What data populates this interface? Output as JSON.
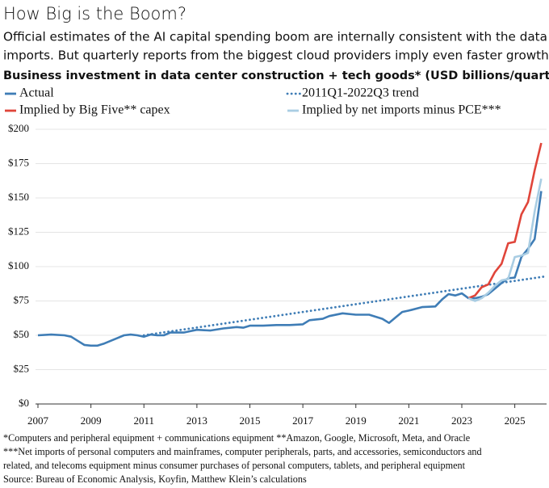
{
  "chart_data": {
    "type": "line",
    "title": "How Big is the Boom?",
    "subtitle": [
      "Official estimates of the AI capital spending boom are internally consistent with the data on",
      "imports. But quarterly reports from the biggest cloud providers imply even faster growth."
    ],
    "chart_title": "Business investment in data center construction + tech goods* (USD billions/quarter)",
    "xlim": [
      2007,
      2026.2
    ],
    "xticks": [
      2007,
      2009,
      2011,
      2013,
      2015,
      2017,
      2019,
      2021,
      2023,
      2025
    ],
    "ylim": [
      0,
      200
    ],
    "yticks": [
      {
        "value": 0,
        "label": "$0"
      },
      {
        "value": 25,
        "label": "$25"
      },
      {
        "value": 50,
        "label": "$50"
      },
      {
        "value": 75,
        "label": "$75"
      },
      {
        "value": 100,
        "label": "$100"
      },
      {
        "value": 125,
        "label": "$125"
      },
      {
        "value": 150,
        "label": "$150"
      },
      {
        "value": 175,
        "label": "$175"
      },
      {
        "value": 200,
        "label": "$200"
      }
    ],
    "grid": true,
    "series": [
      {
        "name": "Actual",
        "color": "#3f7db6",
        "style": "solid",
        "x": [
          2007,
          2007.5,
          2008,
          2008.25,
          2008.5,
          2008.75,
          2009,
          2009.25,
          2009.5,
          2009.75,
          2010,
          2010.25,
          2010.5,
          2010.75,
          2011,
          2011.25,
          2011.5,
          2011.75,
          2012,
          2012.5,
          2012.75,
          2013,
          2013.5,
          2014,
          2014.5,
          2014.75,
          2015,
          2015.5,
          2016,
          2016.5,
          2017,
          2017.25,
          2017.75,
          2018,
          2018.5,
          2019,
          2019.5,
          2020,
          2020.25,
          2020.5,
          2020.75,
          2021,
          2021.5,
          2022,
          2022.25,
          2022.5,
          2022.75,
          2023,
          2023.25,
          2023.5,
          2023.75,
          2024,
          2024.25,
          2024.5,
          2024.75,
          2025,
          2025.25,
          2025.5,
          2025.75,
          2026
        ],
        "values": [
          50,
          50.5,
          50,
          49,
          46,
          43,
          42.5,
          42.5,
          44,
          46,
          48,
          50,
          50.5,
          50,
          49,
          50.5,
          50,
          50,
          52,
          52,
          53,
          54,
          53.5,
          55,
          56,
          55.5,
          57,
          57,
          57.5,
          57.5,
          58,
          61,
          62,
          64,
          66,
          65,
          65,
          62,
          59,
          63,
          67,
          68,
          70.5,
          71,
          76,
          80,
          79,
          80.5,
          77,
          77,
          78,
          80,
          84,
          88,
          91.5,
          92,
          107,
          113,
          120,
          155
        ]
      },
      {
        "name": "2011Q1-2022Q3 trend",
        "color": "#3f7db6",
        "style": "dotted",
        "x": [
          2011,
          2026.2
        ],
        "values": [
          50,
          93
        ]
      },
      {
        "name": "Implied by Big Five** capex",
        "color": "#e0453a",
        "style": "solid",
        "x": [
          2023.25,
          2023.5,
          2023.75,
          2024,
          2024.25,
          2024.5,
          2024.75,
          2025,
          2025.25,
          2025.5,
          2025.75,
          2026
        ],
        "values": [
          77,
          79,
          85,
          87,
          96,
          102,
          117,
          118,
          138,
          147,
          170,
          190
        ]
      },
      {
        "name": "Implied by net imports minus PCE***",
        "color": "#a9cde3",
        "style": "solid",
        "x": [
          2023.25,
          2023.5,
          2023.75,
          2024,
          2024.25,
          2024.5,
          2024.75,
          2025,
          2025.25,
          2025.5,
          2025.75,
          2026
        ],
        "values": [
          77,
          75,
          77,
          81,
          86,
          90,
          91,
          107,
          108,
          110,
          140,
          164
        ]
      }
    ],
    "notes": [
      "*Computers and peripheral equipment + communications equipment  **Amazon, Google, Microsoft, Meta, and Oracle",
      "***Net imports of personal computers and mainframes, computer peripherals, parts, and accessories, semiconductors and",
      "related, and telecoms equipment minus consumer purchases of personal computers, tablets, and peripheral equipment",
      "Source: Bureau of Economic Analysis, Koyfin, Matthew Klein’s calculations"
    ]
  }
}
